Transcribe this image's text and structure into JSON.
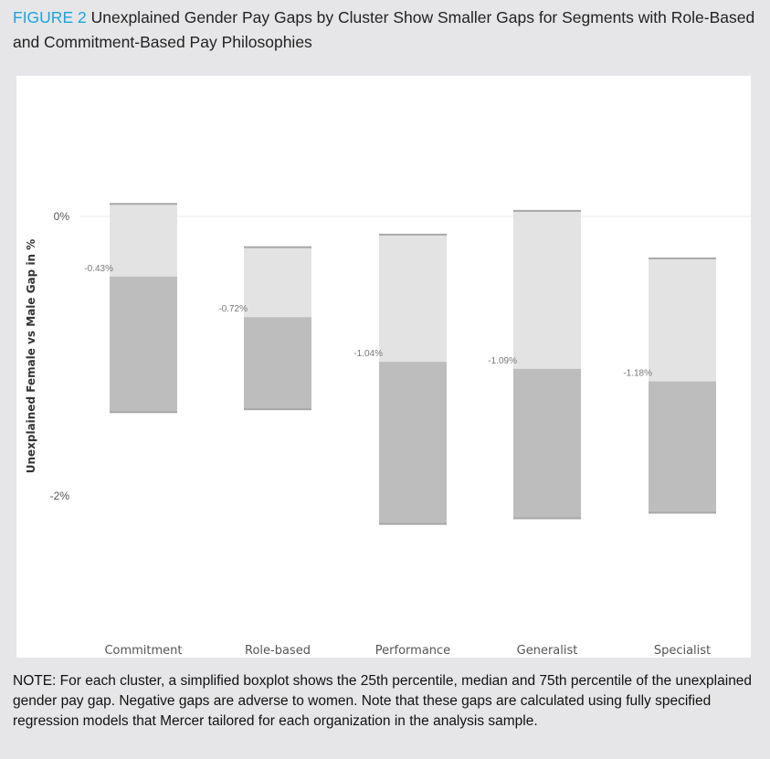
{
  "figure": {
    "label": "FIGURE 2",
    "title": "Unexplained Gender Pay Gaps by Cluster Show Smaller Gaps for Segments with Role-Based and Commitment-Based Pay Philosophies",
    "note": "NOTE: For each cluster, a simplified boxplot shows the 25th percentile, median and 75th percentile of the unexplained gender pay gap. Negative gaps are adverse to women. Note that these gaps are calculated using fully specified regression models that Mercer tailored for each organization in the analysis sample."
  },
  "chart_data": {
    "type": "boxplot",
    "ylabel": "Unexplained Female vs Male Gap in %",
    "yticks": [
      {
        "value": 0,
        "label": "0%"
      },
      {
        "value": -2,
        "label": "-2%"
      }
    ],
    "ylim": [
      -3.1,
      1.0
    ],
    "grid": "zero line only",
    "categories": [
      "Commitment",
      "Role-based",
      "Performance",
      "Generalist",
      "Specialist"
    ],
    "series": [
      {
        "category": "Commitment",
        "q75": 0.09,
        "median": -0.43,
        "q25": -1.4,
        "label": "-0.43%"
      },
      {
        "category": "Role-based",
        "q75": -0.22,
        "median": -0.72,
        "q25": -1.38,
        "label": "-0.72%"
      },
      {
        "category": "Performance",
        "q75": -0.13,
        "median": -1.04,
        "q25": -2.2,
        "label": "-1.04%"
      },
      {
        "category": "Generalist",
        "q75": 0.04,
        "median": -1.09,
        "q25": -2.16,
        "label": "-1.09%"
      },
      {
        "category": "Specialist",
        "q75": -0.3,
        "median": -1.18,
        "q25": -2.12,
        "label": "-1.18%"
      }
    ],
    "colors": {
      "upper": "#e3e3e3",
      "lower": "#bdbdbd",
      "edge": "#a8a8a8"
    }
  }
}
